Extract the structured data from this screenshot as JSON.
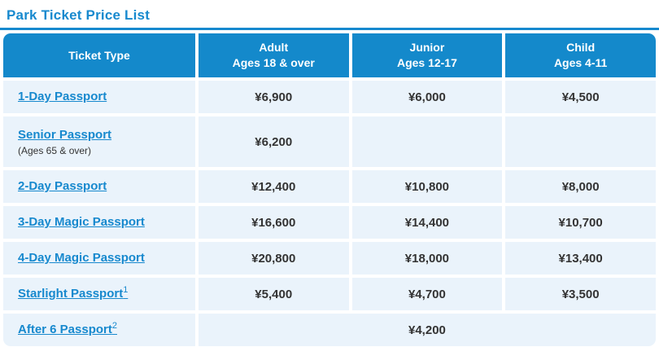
{
  "page": {
    "title": "Park Ticket Price List"
  },
  "colors": {
    "accent": "#1789CE",
    "header-bg": "#1489CB",
    "row-bg": "#EAF3FB",
    "price-text": "#333333",
    "note-text": "#333333",
    "page-bg": "#FFFFFF"
  },
  "table": {
    "columns": [
      {
        "label": "Ticket Type",
        "sublabel": ""
      },
      {
        "label": "Adult",
        "sublabel": "Ages 18 & over"
      },
      {
        "label": "Junior",
        "sublabel": "Ages 12-17"
      },
      {
        "label": "Child",
        "sublabel": "Ages 4-11"
      }
    ],
    "rows": [
      {
        "ticket": "1-Day Passport",
        "sup": "",
        "note": "",
        "adult": "¥6,900",
        "junior": "¥6,000",
        "child": "¥4,500"
      },
      {
        "ticket": "Senior Passport",
        "sup": "",
        "note": "(Ages 65 & over)",
        "adult": "¥6,200",
        "junior": "",
        "child": ""
      },
      {
        "ticket": "2-Day Passport",
        "sup": "",
        "note": "",
        "adult": "¥12,400",
        "junior": "¥10,800",
        "child": "¥8,000"
      },
      {
        "ticket": "3-Day Magic Passport",
        "sup": "",
        "note": "",
        "adult": "¥16,600",
        "junior": "¥14,400",
        "child": "¥10,700"
      },
      {
        "ticket": "4-Day Magic Passport",
        "sup": "",
        "note": "",
        "adult": "¥20,800",
        "junior": "¥18,000",
        "child": "¥13,400"
      },
      {
        "ticket": "Starlight Passport",
        "sup": "1",
        "note": "",
        "adult": "¥5,400",
        "junior": "¥4,700",
        "child": "¥3,500"
      },
      {
        "ticket": "After 6 Passport",
        "sup": "2",
        "note": "",
        "merged_price": "¥4,200"
      }
    ]
  }
}
